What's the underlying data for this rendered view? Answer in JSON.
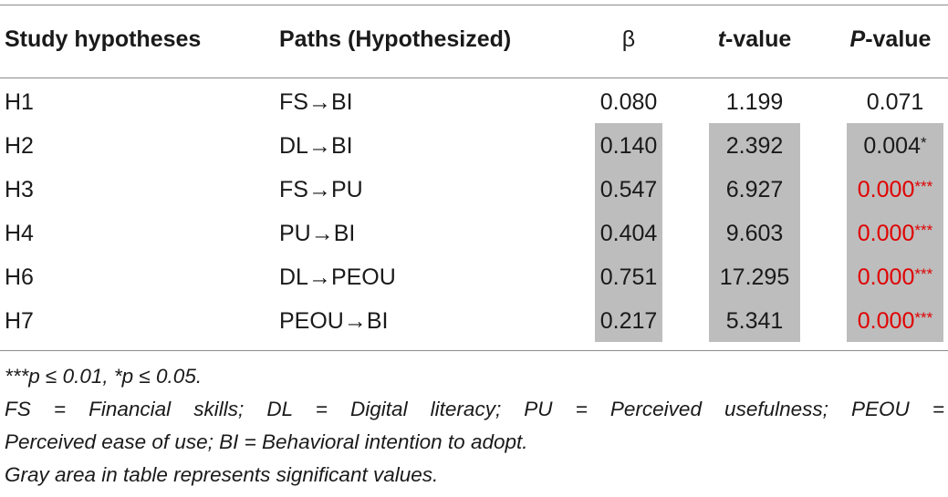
{
  "table": {
    "headers": {
      "hypotheses": "Study hypotheses",
      "paths": "Paths (Hypothesized)",
      "beta": "β",
      "t_italic": "t",
      "t_rest": "-value",
      "p_italic": "P",
      "p_rest": "-value"
    },
    "rows": [
      {
        "h": "H1",
        "path": "FS→BI",
        "beta": "0.080",
        "t": "1.199",
        "p": "0.071",
        "p_suffix": "",
        "significant": false
      },
      {
        "h": "H2",
        "path": "DL→BI",
        "beta": "0.140",
        "t": "2.392",
        "p": "0.004",
        "p_suffix": "*",
        "significant": true
      },
      {
        "h": "H3",
        "path": "FS→PU",
        "beta": "0.547",
        "t": "6.927",
        "p": "0.000",
        "p_suffix": "***",
        "significant": true
      },
      {
        "h": "H4",
        "path": "PU→BI",
        "beta": "0.404",
        "t": "9.603",
        "p": "0.000",
        "p_suffix": "***",
        "significant": true
      },
      {
        "h": "H6",
        "path": "DL→PEOU",
        "beta": "0.751",
        "t": "17.295",
        "p": "0.000",
        "p_suffix": "***",
        "significant": true
      },
      {
        "h": "H7",
        "path": "PEOU→BI",
        "beta": "0.217",
        "t": "5.341",
        "p": "0.000",
        "p_suffix": "***",
        "significant": true
      }
    ]
  },
  "notes": {
    "significance": "***p ≤ 0.01, *p ≤ 0.05.",
    "abbrev_line1": "FS = Financial skills; DL = Digital literacy; PU = Perceived usefulness; PEOU =",
    "abbrev_line2": "Perceived ease of use; BI = Behavioral intention to adopt.",
    "gray_note": "Gray area in table represents significant values."
  },
  "colors": {
    "gray_highlight": "#bdbdbd",
    "red_text": "#e00000"
  }
}
